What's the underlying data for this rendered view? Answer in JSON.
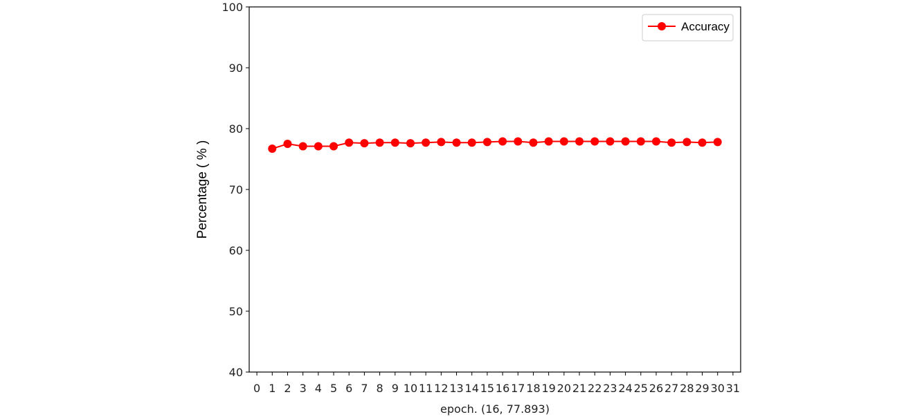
{
  "chart_data": {
    "type": "line",
    "title": "",
    "xlabel": "epoch. (16, 77.893)",
    "ylabel": "Percentage ( % )",
    "xlim": [
      -0.5,
      31.5
    ],
    "ylim": [
      40,
      100
    ],
    "xticks": [
      0,
      1,
      2,
      3,
      4,
      5,
      6,
      7,
      8,
      9,
      10,
      11,
      12,
      13,
      14,
      15,
      16,
      17,
      18,
      19,
      20,
      21,
      22,
      23,
      24,
      25,
      26,
      27,
      28,
      29,
      30,
      31
    ],
    "yticks": [
      40,
      50,
      60,
      70,
      80,
      90,
      100
    ],
    "grid": false,
    "legend_position": "top-right",
    "series": [
      {
        "name": "Accuracy",
        "color": "#ff0000",
        "marker": "circle",
        "x": [
          1,
          2,
          3,
          4,
          5,
          6,
          7,
          8,
          9,
          10,
          11,
          12,
          13,
          14,
          15,
          16,
          17,
          18,
          19,
          20,
          21,
          22,
          23,
          24,
          25,
          26,
          27,
          28,
          29,
          30
        ],
        "values": [
          76.7,
          77.5,
          77.1,
          77.1,
          77.1,
          77.7,
          77.6,
          77.7,
          77.7,
          77.6,
          77.7,
          77.8,
          77.7,
          77.7,
          77.8,
          77.9,
          77.9,
          77.7,
          77.9,
          77.9,
          77.9,
          77.9,
          77.9,
          77.9,
          77.9,
          77.9,
          77.7,
          77.8,
          77.7,
          77.8
        ]
      }
    ]
  }
}
